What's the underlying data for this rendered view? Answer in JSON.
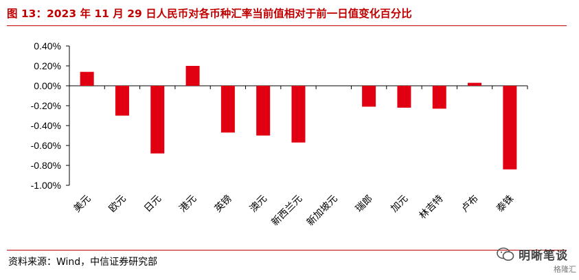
{
  "figure": {
    "title": "图 13：2023 年 11 月 29 日人民币对各币种汇率当前值相对于前一日值变化百分比",
    "source": "资料来源：Wind，中信证券研究部",
    "watermark": "明晰笔谈",
    "watermark_sub": "格隆汇"
  },
  "colors": {
    "accent": "#c00000",
    "bar": "#e00012"
  },
  "chart_data": {
    "type": "bar",
    "title": "",
    "xlabel": "",
    "ylabel": "",
    "ylim": [
      -1.0,
      0.4
    ],
    "ytick_values": [
      0.4,
      0.2,
      0.0,
      -0.2,
      -0.4,
      -0.6,
      -0.8,
      -1.0
    ],
    "ytick_labels": [
      "0.40%",
      "0.20%",
      "0.00%",
      "-0.20%",
      "-0.40%",
      "-0.60%",
      "-0.80%",
      "-1.00%"
    ],
    "categories": [
      "美元",
      "欧元",
      "日元",
      "港元",
      "英镑",
      "澳元",
      "新西兰元",
      "新加坡元",
      "瑞郎",
      "加元",
      "林吉特",
      "卢布",
      "泰铢"
    ],
    "values": [
      0.14,
      -0.3,
      -0.68,
      0.2,
      -0.47,
      -0.5,
      -0.57,
      0.0,
      -0.21,
      -0.22,
      -0.23,
      0.03,
      -0.84
    ],
    "grid": false,
    "legend": "none"
  }
}
